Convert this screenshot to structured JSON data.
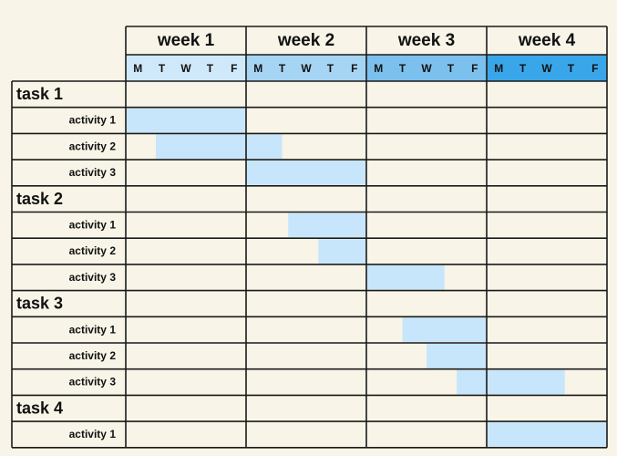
{
  "chart_data": {
    "type": "gantt",
    "weeks": [
      "week 1",
      "week 2",
      "week 3",
      "week 4"
    ],
    "days": [
      "M",
      "T",
      "W",
      "T",
      "F"
    ],
    "week_header_colors": [
      "#cfe9fb",
      "#a6d4f3",
      "#7cc0ee",
      "#3aa6ea"
    ],
    "bar_color": "#c8e6fb",
    "tasks": [
      {
        "name": "task 1",
        "activities": [
          {
            "name": "activity 1",
            "start": 0,
            "end": 5
          },
          {
            "name": "activity 2",
            "start": 1.25,
            "end": 6.5
          },
          {
            "name": "activity 3",
            "start": 5,
            "end": 10
          }
        ]
      },
      {
        "name": "task 2",
        "activities": [
          {
            "name": "activity 1",
            "start": 6.75,
            "end": 10
          },
          {
            "name": "activity 2",
            "start": 8,
            "end": 10
          },
          {
            "name": "activity 3",
            "start": 10,
            "end": 13.25
          }
        ]
      },
      {
        "name": "task 3",
        "activities": [
          {
            "name": "activity 1",
            "start": 11.5,
            "end": 15
          },
          {
            "name": "activity 2",
            "start": 12.5,
            "end": 15
          },
          {
            "name": "activity 3",
            "start": 13.75,
            "end": 18.25
          }
        ]
      },
      {
        "name": "task 4",
        "activities": [
          {
            "name": "activity 1",
            "start": 15,
            "end": 20
          }
        ]
      }
    ]
  }
}
